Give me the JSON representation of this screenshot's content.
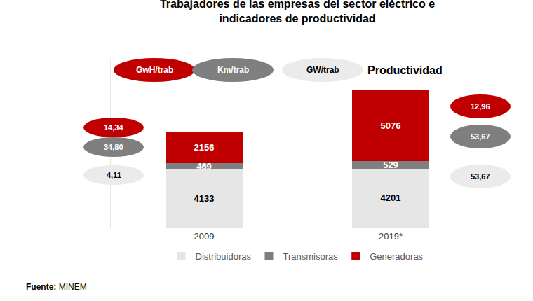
{
  "chart_data": {
    "type": "bar",
    "title": "Trabajadores de las empresas del sector eléctrico e indicadores de productividad",
    "categories": [
      "2009",
      "2019*"
    ],
    "series": [
      {
        "name": "Distribuidoras",
        "color": "#e7e6e6",
        "values": [
          4133,
          4201
        ]
      },
      {
        "name": "Transmisoras",
        "color": "#7f7f7f",
        "values": [
          469,
          529
        ]
      },
      {
        "name": "Generadoras",
        "color": "#c00000",
        "values": [
          2156,
          5076
        ]
      }
    ],
    "stacked": true,
    "data_labels": true,
    "tick_labels": "x",
    "legend": "bottom",
    "ylim": [
      0,
      12000
    ],
    "productivity": {
      "title": "Productividad",
      "indicators": [
        {
          "name": "GwH/trab",
          "color": "#c00000",
          "values": [
            14.34,
            12.96
          ],
          "value_labels": [
            "14,34",
            "12,96"
          ]
        },
        {
          "name": "Km/trab",
          "color": "#7f7f7f",
          "values": [
            34.8,
            53.67
          ],
          "value_labels": [
            "34,80",
            "53,67"
          ]
        },
        {
          "name": "GW/trab",
          "color": "#ebebeb",
          "values": [
            4.11,
            53.67
          ],
          "value_labels": [
            "4,11",
            "53,67"
          ]
        }
      ]
    },
    "source": {
      "label": "Fuente:",
      "text": "MINEM"
    }
  }
}
